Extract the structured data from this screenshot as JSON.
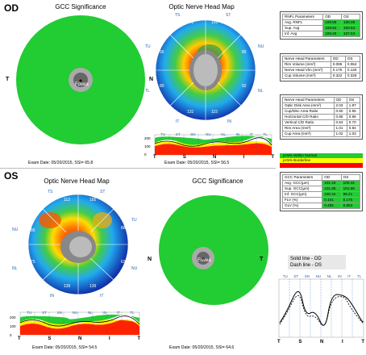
{
  "colors": {
    "normal": "#22cc33",
    "borderline": "#ffff00",
    "outside": "#ff0000",
    "disc": "#aaaaaa"
  },
  "od": {
    "eye_label": "OD",
    "gcc_title": "GCC Significance",
    "onh_title": "Optic Nerve Head Map",
    "t_label": "T",
    "n_label": "N",
    "fovea_label": "Fovea",
    "sectors": [
      {
        "label": "TS",
        "value": "148"
      },
      {
        "label": "ST",
        "value": "103"
      },
      {
        "label": "NU",
        "value": "85"
      },
      {
        "label": "NL",
        "value": "92"
      },
      {
        "label": "IN",
        "value": "115"
      },
      {
        "label": "IT",
        "value": "131"
      },
      {
        "label": "TL",
        "value": "80"
      },
      {
        "label": "TU",
        "value": "90"
      }
    ],
    "exam_gcc": "Exam Date: 05/20/2015, SSI= 65.8",
    "exam_onh": "Exam Date: 05/20/2015, SSI= 56.5",
    "tsnit": {
      "sections": [
        "TU",
        "ST",
        "SN",
        "NU",
        "NL",
        "IN",
        "IT",
        "TL"
      ],
      "yticks": [
        "200",
        "100",
        "0"
      ],
      "xlabels": [
        "T",
        "S",
        "N",
        "I",
        "T"
      ]
    }
  },
  "os": {
    "eye_label": "OS",
    "onh_title": "Optic Nerve Head Map",
    "gcc_title": "GCC Significance",
    "t_label": "T",
    "n_label": "N",
    "fovea_label": "Fovea",
    "sectors": [
      {
        "label": "TS",
        "value": "112"
      },
      {
        "label": "ST",
        "value": "165"
      },
      {
        "label": "TU",
        "value": "88"
      },
      {
        "label": "NU",
        "value": "85"
      },
      {
        "label": "TL",
        "value": "62"
      },
      {
        "label": "NL",
        "value": "75"
      },
      {
        "label": "IN",
        "value": "139"
      },
      {
        "label": "IT",
        "value": "139"
      }
    ],
    "exam_onh": "Exam Date: 05/20/2015, SSI= 54.5",
    "exam_gcc": "Exam Date: 05/20/2015, SSI= 64.6",
    "tsnit": {
      "sections": [
        "TU",
        "ST",
        "SN",
        "NU",
        "NL",
        "IN",
        "IT",
        "TL"
      ],
      "yticks": [
        "200",
        "100",
        "0"
      ],
      "xlabels": [
        "T",
        "S",
        "N",
        "I",
        "T"
      ]
    }
  },
  "rnfl_table": {
    "headers": [
      "RNFL Parameters",
      "OD",
      "OS"
    ],
    "rows": [
      [
        "Avg. RNFL",
        "109.89",
        "105.08"
      ],
      [
        "Sup. Avg",
        "108.52",
        "100.63"
      ],
      [
        "Inf. Avg",
        "109.26",
        "107.53"
      ]
    ]
  },
  "nh_table": {
    "headers": [
      "Nerve Head Parameters",
      "OD",
      "OS"
    ],
    "rows": [
      [
        "Rim Volume (mm³)",
        "0.095",
        "0.064"
      ],
      [
        "Nerve Head Vlm (mm³)",
        "0.175",
        "0.128"
      ],
      [
        "Cup Volume (mm³)",
        "0.322",
        "0.328"
      ]
    ]
  },
  "nh_table2": {
    "headers": [
      "Nerve Head Parameters",
      "OD",
      "OS"
    ],
    "rows": [
      [
        "Optic Disk Area (mm²)",
        "2.03",
        "1.87"
      ],
      [
        "Cup/Disc Area Ratio",
        "0.50",
        "0.55"
      ],
      [
        "Horizontal C/D Ratio",
        "0.85",
        "0.86"
      ],
      [
        "Vertical C/D Ratio",
        "0.64",
        "0.70"
      ],
      [
        "Rim Area (mm²)",
        "1.01",
        "0.84"
      ],
      [
        "Cup Area (mm²)",
        "1.02",
        "1.03"
      ]
    ]
  },
  "legend": [
    "p>5% Within Normal",
    "p<5% Borderline",
    "p<1% Outside Normal"
  ],
  "gcc_table": {
    "headers": [
      "GCC Parameters",
      "OD",
      "OS"
    ],
    "rows": [
      [
        "Avg. GCC(µm)",
        "101.19",
        "100.44"
      ],
      [
        "Sup. GCC(µm)",
        "101.96",
        "101.69"
      ],
      [
        "Inf. GCC(µm)",
        "100.44",
        "99.21"
      ],
      [
        "FLV (%)",
        "0.101",
        "0.175"
      ],
      [
        "GLV (%)",
        "0.455",
        "0.953"
      ]
    ]
  },
  "overlay": {
    "solid": "Solid line - OD",
    "dash": "Dash line - OS",
    "sections": [
      "TU",
      "ST",
      "SN",
      "NU",
      "NL",
      "IN",
      "IT",
      "TL"
    ],
    "xlabels": [
      "T",
      "S",
      "N",
      "I",
      "T"
    ]
  }
}
